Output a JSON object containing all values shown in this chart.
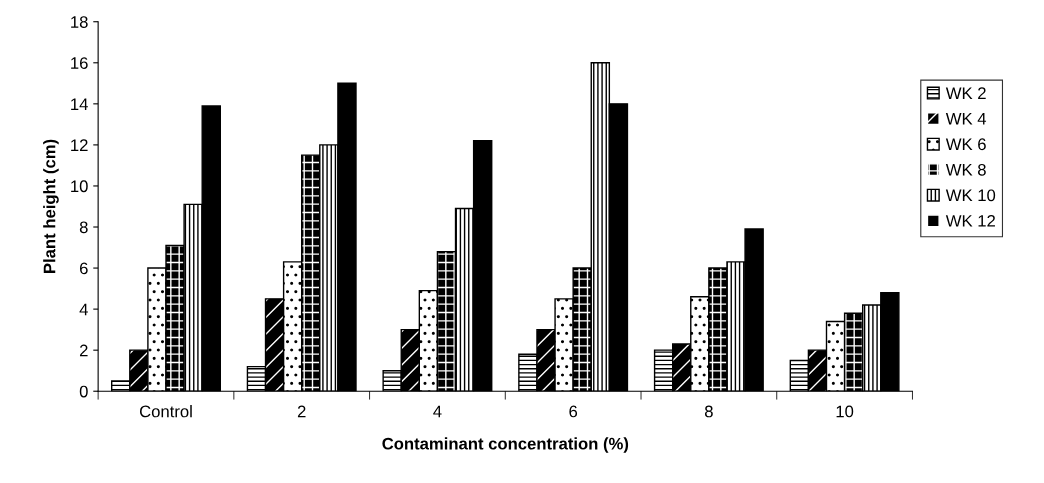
{
  "chart_data": {
    "type": "bar",
    "xlabel": "Contaminant concentration (%)",
    "ylabel": "Plant height (cm)",
    "categories": [
      "Control",
      "2",
      "4",
      "6",
      "8",
      "10"
    ],
    "series": [
      {
        "name": "WK 2",
        "color": "#ffffff",
        "values": [
          0.5,
          1.2,
          1.0,
          1.8,
          2.0,
          1.5
        ]
      },
      {
        "name": "WK 4",
        "color": "#000000",
        "values": [
          2.0,
          4.5,
          3.0,
          3.0,
          2.3,
          2.0
        ]
      },
      {
        "name": "WK 6",
        "color": "#ffffff",
        "values": [
          6.0,
          6.3,
          4.9,
          4.5,
          4.6,
          3.4
        ]
      },
      {
        "name": "WK 8",
        "color": "#000000",
        "values": [
          7.1,
          11.5,
          6.8,
          6.0,
          6.0,
          3.8
        ]
      },
      {
        "name": "WK 10",
        "color": "#ffffff",
        "values": [
          9.1,
          12.0,
          8.9,
          16.0,
          6.3,
          4.2
        ]
      },
      {
        "name": "WK 12",
        "color": "#000000",
        "values": [
          13.9,
          15.0,
          12.2,
          14.0,
          7.9,
          4.8
        ]
      }
    ],
    "ylim": [
      0,
      18
    ],
    "yticks": [
      0,
      2,
      4,
      6,
      8,
      10,
      12,
      14,
      16,
      18
    ],
    "grid": false,
    "legend": "right"
  }
}
